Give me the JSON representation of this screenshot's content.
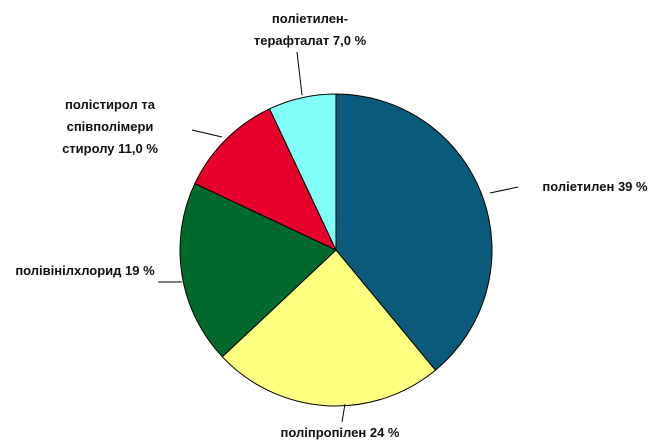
{
  "chart_data": {
    "type": "pie",
    "categories": [
      "поліетилен",
      "поліпропілен",
      "полівінілхлорид",
      "полістирол та співполімери стиролу",
      "поліетилен-терафталат"
    ],
    "values": [
      39,
      24,
      19,
      11,
      7
    ],
    "value_labels": [
      "39 %",
      "24 %",
      "19 %",
      "11,0 %",
      "7,0 %"
    ],
    "colors": [
      "#0a5a7c",
      "#ffff80",
      "#006a2c",
      "#e8002c",
      "#80fff8"
    ]
  }
}
